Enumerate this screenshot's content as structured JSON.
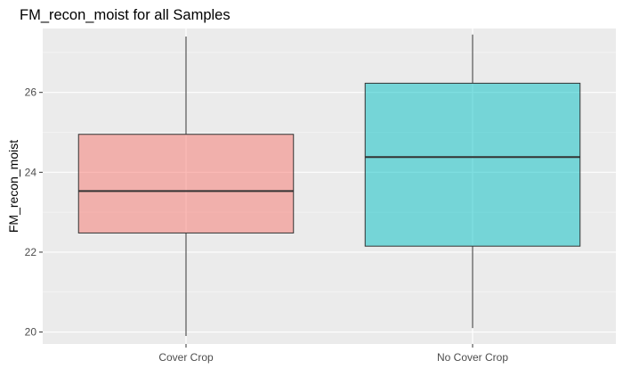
{
  "chart_data": {
    "type": "boxplot",
    "title": "FM_recon_moist for all Samples",
    "xlabel": "",
    "ylabel": "FM_recon_moist",
    "ylim": [
      19.7,
      27.6
    ],
    "yticks": [
      20,
      22,
      24,
      26
    ],
    "ytick_labels": [
      "20",
      "22",
      "24",
      "26"
    ],
    "categories": [
      "Cover Crop",
      "No Cover Crop"
    ],
    "boxes": [
      {
        "category": "Cover Crop",
        "min": 19.9,
        "q1": 22.48,
        "median": 23.53,
        "q3": 24.95,
        "max": 27.4,
        "fill": "#f8766d"
      },
      {
        "category": "No Cover Crop",
        "min": 20.1,
        "q1": 22.15,
        "median": 24.38,
        "q3": 26.23,
        "max": 27.45,
        "fill": "#00bfc4"
      }
    ],
    "grid": true,
    "legend": "none"
  },
  "colors": {
    "panel_background": "#ebebeb",
    "grid_major": "#ffffff",
    "grid_minor": "#f5f5f5"
  }
}
